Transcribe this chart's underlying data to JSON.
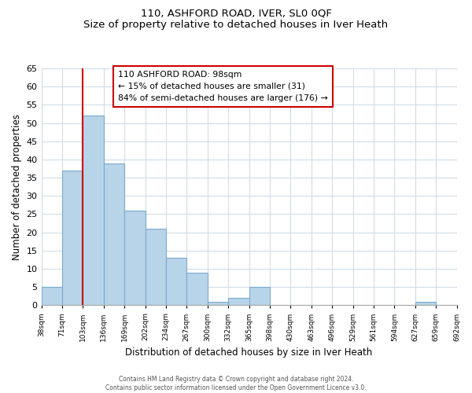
{
  "title": "110, ASHFORD ROAD, IVER, SL0 0QF",
  "subtitle": "Size of property relative to detached houses in Iver Heath",
  "xlabel": "Distribution of detached houses by size in Iver Heath",
  "ylabel": "Number of detached properties",
  "tick_labels": [
    "38sqm",
    "71sqm",
    "103sqm",
    "136sqm",
    "169sqm",
    "202sqm",
    "234sqm",
    "267sqm",
    "300sqm",
    "332sqm",
    "365sqm",
    "398sqm",
    "430sqm",
    "463sqm",
    "496sqm",
    "529sqm",
    "561sqm",
    "594sqm",
    "627sqm",
    "659sqm",
    "692sqm"
  ],
  "bar_heights": [
    5,
    37,
    52,
    39,
    26,
    21,
    13,
    9,
    1,
    2,
    5,
    0,
    0,
    0,
    0,
    0,
    0,
    0,
    1,
    0
  ],
  "bar_color": "#b8d4e8",
  "bar_edge_color": "#7aaacf",
  "vline_pos": 2.0,
  "vline_color": "#cc0000",
  "ylim": [
    0,
    65
  ],
  "yticks": [
    0,
    5,
    10,
    15,
    20,
    25,
    30,
    35,
    40,
    45,
    50,
    55,
    60,
    65
  ],
  "annotation_box_text": "110 ASHFORD ROAD: 98sqm\n← 15% of detached houses are smaller (31)\n84% of semi-detached houses are larger (176) →",
  "footer_line1": "Contains HM Land Registry data © Crown copyright and database right 2024.",
  "footer_line2": "Contains public sector information licensed under the Open Government Licence v3.0.",
  "background_color": "#ffffff",
  "grid_color": "#d0dce8",
  "n_bars": 20
}
